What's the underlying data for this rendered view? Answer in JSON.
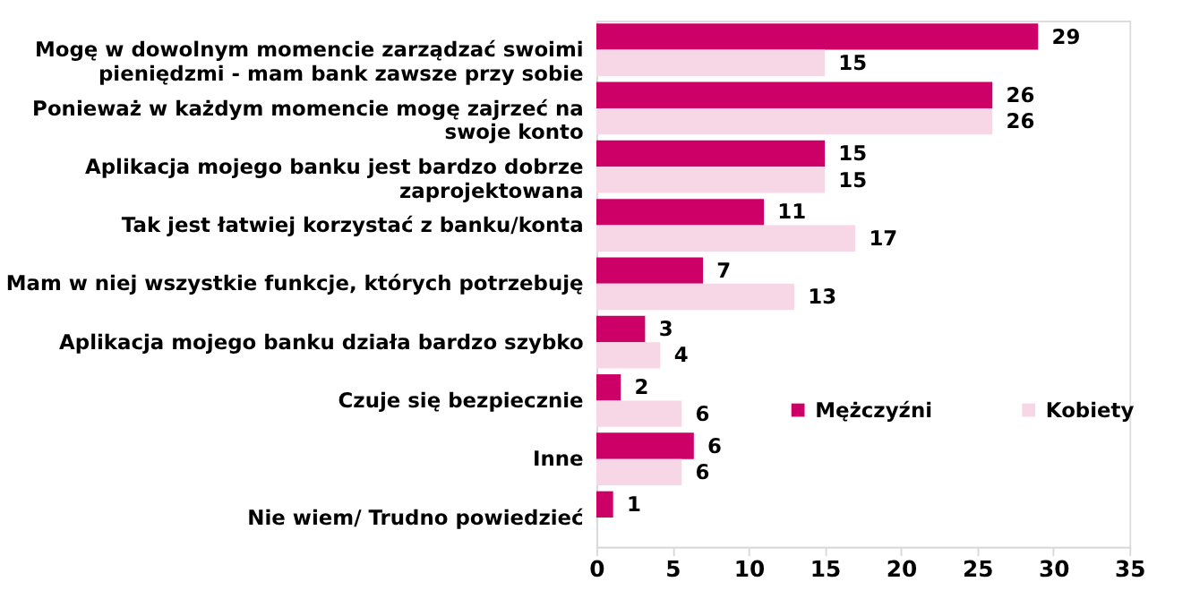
{
  "chart_data": {
    "type": "bar",
    "orientation": "horizontal",
    "categories": [
      "Mogę w dowolnym momencie zarządzać swoimi pieniędzmi - mam bank zawsze przy sobie",
      "Ponieważ w każdym momencie mogę zajrzeć na swoje konto",
      "Aplikacja mojego banku jest bardzo dobrze zaprojektowana",
      "Tak jest łatwiej korzystać z banku/konta",
      "Mam w niej wszystkie funkcje, których potrzebuję",
      "Aplikacja mojego banku działa bardzo szybko",
      "Czuje się bezpiecznie",
      "Inne",
      "Nie wiem/ Trudno powiedzieć"
    ],
    "series": [
      {
        "name": "Mężczyźni",
        "color": "#cc0066",
        "values": [
          29,
          26,
          15,
          11,
          7,
          3.2,
          1.6,
          6.4,
          1.1
        ],
        "value_labels": [
          "29",
          "26",
          "15",
          "11",
          "7",
          "3",
          "2",
          "6",
          "1"
        ]
      },
      {
        "name": "Kobiety",
        "color": "#f7d6e6",
        "values": [
          15,
          26,
          15,
          17,
          13,
          4.2,
          5.6,
          5.6,
          null
        ],
        "value_labels": [
          "15",
          "26",
          "15",
          "17",
          "13",
          "4",
          "6",
          "6",
          null
        ]
      }
    ],
    "xlim": [
      0,
      35
    ],
    "xticks": [
      0,
      5,
      10,
      15,
      20,
      25,
      30,
      35
    ],
    "grid": false,
    "legend": "right"
  }
}
